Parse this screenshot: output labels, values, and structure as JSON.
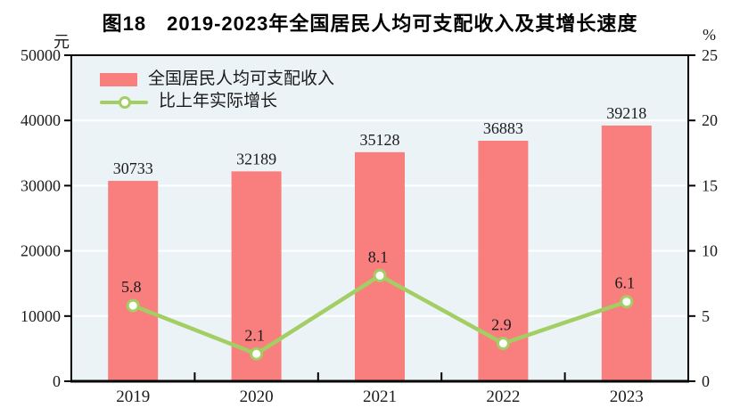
{
  "chart_data": {
    "type": "bar+line",
    "title": "图18　2019-2023年全国居民人均可支配收入及其增长速度",
    "categories": [
      "2019",
      "2020",
      "2021",
      "2022",
      "2023"
    ],
    "series": [
      {
        "name": "全国居民人均可支配收入",
        "type": "bar",
        "axis": "left",
        "values": [
          30733,
          32189,
          35128,
          36883,
          39218
        ]
      },
      {
        "name": "比上年实际增长",
        "type": "line",
        "axis": "right",
        "values": [
          5.8,
          2.1,
          8.1,
          2.9,
          6.1
        ]
      }
    ],
    "left_axis": {
      "unit": "元",
      "min": 0,
      "max": 50000,
      "step": 10000,
      "ticks": [
        "0",
        "10000",
        "20000",
        "30000",
        "40000",
        "50000"
      ]
    },
    "right_axis": {
      "unit": "%",
      "min": 0,
      "max": 25,
      "step": 5,
      "ticks": [
        "0",
        "5",
        "10",
        "15",
        "20",
        "25"
      ]
    },
    "grid": true,
    "legend_position": "top-left-inside",
    "colors": {
      "bar": "#F97F7F",
      "line": "#A2CE63",
      "plot_bg": "#ECF3F6",
      "grid": "#FFFFFF",
      "axis": "#000000",
      "text": "#1A1A1A"
    }
  }
}
